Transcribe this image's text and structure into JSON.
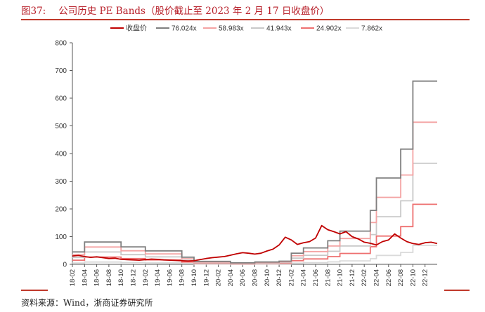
{
  "figure": {
    "number": "图37:",
    "title": "公司历史 PE Bands（股价截止至 2023 年 2 月 17 日收盘价）",
    "source": "资料来源：Wind，浙商证券研究所"
  },
  "chart_data": {
    "type": "line",
    "title": "",
    "xlabel": "",
    "ylabel": "",
    "ylim": [
      0,
      800
    ],
    "yticks": [
      0,
      100,
      200,
      300,
      400,
      500,
      600,
      700,
      800
    ],
    "x_start": "2018-02",
    "x_end": "2023-02",
    "xticks": [
      "18-02",
      "18-04",
      "18-06",
      "18-08",
      "18-10",
      "18-12",
      "19-02",
      "19-04",
      "19-06",
      "19-08",
      "19-10",
      "19-12",
      "20-02",
      "20-04",
      "20-06",
      "20-08",
      "20-10",
      "20-12",
      "21-02",
      "21-04",
      "21-06",
      "21-08",
      "21-10",
      "21-12",
      "22-02",
      "22-04",
      "22-06",
      "22-08",
      "22-10",
      "22-12"
    ],
    "grid": false,
    "legend_position": "top",
    "eps_steps": [
      {
        "x": "2018-02",
        "eps": 0.59
      },
      {
        "x": "2018-04",
        "eps": 1.06
      },
      {
        "x": "2018-10",
        "eps": 0.83
      },
      {
        "x": "2019-02",
        "eps": 0.64
      },
      {
        "x": "2019-08",
        "eps": 0.34
      },
      {
        "x": "2019-10",
        "eps": 0.14
      },
      {
        "x": "2020-04",
        "eps": 0.07
      },
      {
        "x": "2020-08",
        "eps": 0.11
      },
      {
        "x": "2020-12",
        "eps": 0.15
      },
      {
        "x": "2021-02",
        "eps": 0.53
      },
      {
        "x": "2021-04",
        "eps": 0.78
      },
      {
        "x": "2021-08",
        "eps": 1.12
      },
      {
        "x": "2021-10",
        "eps": 1.58
      },
      {
        "x": "2022-03",
        "eps": 2.56
      },
      {
        "x": "2022-04",
        "eps": 4.1
      },
      {
        "x": "2022-08",
        "eps": 5.47
      },
      {
        "x": "2022-10",
        "eps": 8.7
      },
      {
        "x": "2023-02",
        "eps": 8.7
      }
    ],
    "series": [
      {
        "name": "收盘价",
        "color": "#c00000",
        "width": 1.8,
        "points": [
          [
            "2018-02",
            30
          ],
          [
            "2018-03",
            32
          ],
          [
            "2018-04",
            28
          ],
          [
            "2018-05",
            25
          ],
          [
            "2018-06",
            27
          ],
          [
            "2018-07",
            24
          ],
          [
            "2018-08",
            21
          ],
          [
            "2018-09",
            22
          ],
          [
            "2018-10",
            18
          ],
          [
            "2018-11",
            17
          ],
          [
            "2018-12",
            16
          ],
          [
            "2019-01",
            15
          ],
          [
            "2019-02",
            17
          ],
          [
            "2019-03",
            19
          ],
          [
            "2019-04",
            18
          ],
          [
            "2019-05",
            16
          ],
          [
            "2019-06",
            15
          ],
          [
            "2019-07",
            14
          ],
          [
            "2019-08",
            13
          ],
          [
            "2019-09",
            12
          ],
          [
            "2019-10",
            13
          ],
          [
            "2019-11",
            17
          ],
          [
            "2019-12",
            21
          ],
          [
            "2020-01",
            24
          ],
          [
            "2020-02",
            26
          ],
          [
            "2020-03",
            28
          ],
          [
            "2020-04",
            33
          ],
          [
            "2020-05",
            38
          ],
          [
            "2020-06",
            42
          ],
          [
            "2020-07",
            40
          ],
          [
            "2020-08",
            37
          ],
          [
            "2020-09",
            40
          ],
          [
            "2020-10",
            48
          ],
          [
            "2020-11",
            55
          ],
          [
            "2020-12",
            70
          ],
          [
            "2021-01",
            98
          ],
          [
            "2021-02",
            88
          ],
          [
            "2021-03",
            72
          ],
          [
            "2021-04",
            78
          ],
          [
            "2021-05",
            82
          ],
          [
            "2021-06",
            95
          ],
          [
            "2021-07",
            140
          ],
          [
            "2021-08",
            125
          ],
          [
            "2021-09",
            118
          ],
          [
            "2021-10",
            110
          ],
          [
            "2021-11",
            118
          ],
          [
            "2021-12",
            100
          ],
          [
            "2022-01",
            92
          ],
          [
            "2022-02",
            80
          ],
          [
            "2022-03",
            76
          ],
          [
            "2022-04",
            70
          ],
          [
            "2022-05",
            82
          ],
          [
            "2022-06",
            88
          ],
          [
            "2022-07",
            110
          ],
          [
            "2022-08",
            95
          ],
          [
            "2022-09",
            82
          ],
          [
            "2022-10",
            75
          ],
          [
            "2022-11",
            72
          ],
          [
            "2022-12",
            78
          ],
          [
            "2023-01",
            80
          ],
          [
            "2023-02",
            75
          ]
        ]
      },
      {
        "name": "76.024x",
        "color": "#7f7f7f",
        "width": 1.8,
        "multiplier": 76.024
      },
      {
        "name": "58.983x",
        "color": "#f4a3a3",
        "width": 1.8,
        "multiplier": 58.983
      },
      {
        "name": "41.943x",
        "color": "#c8c8c8",
        "width": 1.8,
        "multiplier": 41.943
      },
      {
        "name": "24.902x",
        "color": "#ee7070",
        "width": 1.8,
        "multiplier": 24.902
      },
      {
        "name": "7.862x",
        "color": "#dadada",
        "width": 1.8,
        "multiplier": 7.862
      }
    ]
  }
}
